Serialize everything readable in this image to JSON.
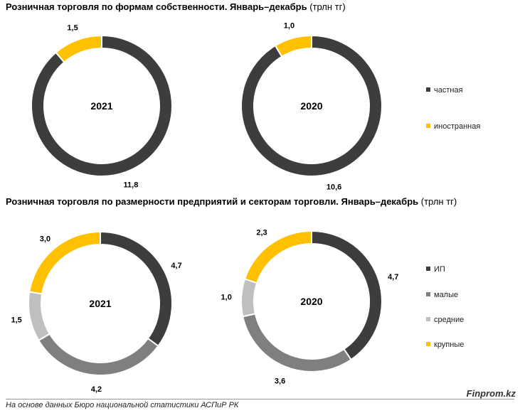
{
  "titles": {
    "t1_bold": "Розничная торговля по формам собственности. Январь–декабрь",
    "t1_unit": "(трлн тг)",
    "t2_bold": "Розничная торговля по размерности предприятий и секторам торговли. Январь–декабрь",
    "t2_unit": "(трлн тг)"
  },
  "legend1": [
    {
      "label": "частная",
      "color": "#3d3d3d"
    },
    {
      "label": "иностранная",
      "color": "#ffc000"
    }
  ],
  "legend2": [
    {
      "label": "ИП",
      "color": "#3d3d3d"
    },
    {
      "label": "малые",
      "color": "#7f7f7f"
    },
    {
      "label": "средние",
      "color": "#bfbfbf"
    },
    {
      "label": "крупные",
      "color": "#ffc000"
    }
  ],
  "footer": {
    "source": "На основе данных Бюро национальной статистики АСПиР РК",
    "brand": "Finprom.kz"
  },
  "chart_data": [
    {
      "type": "pie",
      "title": "Розничная торговля по формам собственности. Январь–декабрь (трлн тг)",
      "center_label": "2021",
      "slices": [
        {
          "name": "частная",
          "value": 11.8,
          "label": "11,8",
          "color": "#3d3d3d"
        },
        {
          "name": "иностранная",
          "value": 1.5,
          "label": "1,5",
          "color": "#ffc000"
        }
      ]
    },
    {
      "type": "pie",
      "title": "Розничная торговля по формам собственности. Январь–декабрь (трлн тг)",
      "center_label": "2020",
      "slices": [
        {
          "name": "частная",
          "value": 10.6,
          "label": "10,6",
          "color": "#3d3d3d"
        },
        {
          "name": "иностранная",
          "value": 1.0,
          "label": "1,0",
          "color": "#ffc000"
        }
      ]
    },
    {
      "type": "pie",
      "title": "Розничная торговля по размерности предприятий и секторам торговли. Январь–декабрь (трлн тг)",
      "center_label": "2021",
      "slices": [
        {
          "name": "ИП",
          "value": 4.7,
          "label": "4,7",
          "color": "#3d3d3d"
        },
        {
          "name": "малые",
          "value": 4.2,
          "label": "4,2",
          "color": "#7f7f7f"
        },
        {
          "name": "средние",
          "value": 1.5,
          "label": "1,5",
          "color": "#bfbfbf"
        },
        {
          "name": "крупные",
          "value": 3.0,
          "label": "3,0",
          "color": "#ffc000"
        }
      ]
    },
    {
      "type": "pie",
      "title": "Розничная торговля по размерности предприятий и секторам торговли. Январь–декабрь (трлн тг)",
      "center_label": "2020",
      "slices": [
        {
          "name": "ИП",
          "value": 4.7,
          "label": "4,7",
          "color": "#3d3d3d"
        },
        {
          "name": "малые",
          "value": 3.6,
          "label": "3,6",
          "color": "#7f7f7f"
        },
        {
          "name": "средние",
          "value": 1.0,
          "label": "1,0",
          "color": "#bfbfbf"
        },
        {
          "name": "крупные",
          "value": 2.3,
          "label": "2,3",
          "color": "#ffc000"
        }
      ]
    }
  ]
}
